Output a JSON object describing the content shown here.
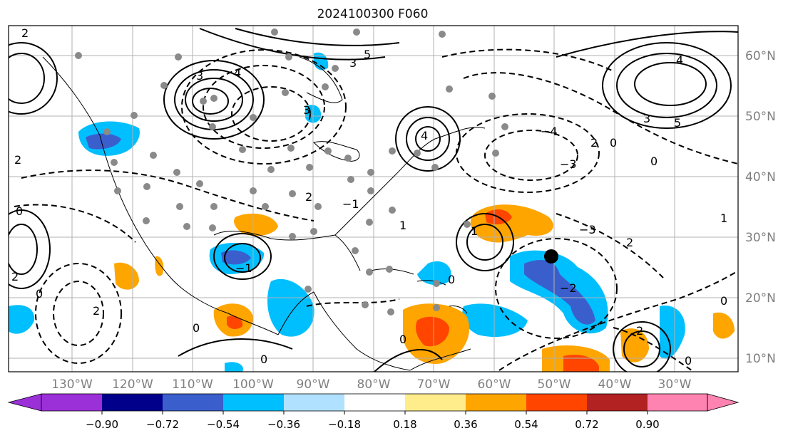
{
  "title": "2024100300 F060",
  "lon_ticks": [
    "130°W",
    "120°W",
    "110°W",
    "100°W",
    "90°W",
    "80°W",
    "70°W",
    "60°W",
    "50°W",
    "40°W",
    "30°W"
  ],
  "lat_ticks": [
    "60°N",
    "50°N",
    "40°N",
    "30°N",
    "20°N",
    "10°N"
  ],
  "colorbar": {
    "ticks": [
      "−0.90",
      "−0.72",
      "−0.54",
      "−0.36",
      "−0.18",
      "0.18",
      "0.36",
      "0.54",
      "0.72",
      "0.90"
    ],
    "colors": [
      "#9b30d9",
      "#00008b",
      "#3a5fcd",
      "#00bfff",
      "#b0e2ff",
      "#ffffff",
      "#ffec8b",
      "#ffa500",
      "#ff4500",
      "#b22222",
      "#ff83b0"
    ],
    "extend": "both"
  },
  "contour_labels": [
    "0",
    "1",
    "2",
    "3",
    "4",
    "5",
    "−1",
    "−2",
    "−3",
    "−4"
  ],
  "marker": {
    "lon": "50°W",
    "lat": "27°N"
  }
}
